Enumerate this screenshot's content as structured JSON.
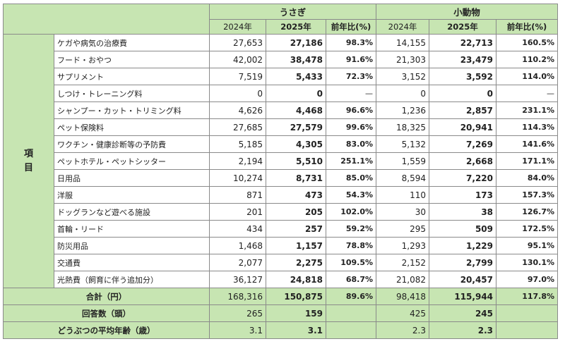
{
  "header": {
    "group1": "うさぎ",
    "group2": "小動物",
    "col_2024": "2024年",
    "col_2025": "2025年",
    "col_ratio": "前年比(%)"
  },
  "side_label": [
    "項",
    "目"
  ],
  "rows": [
    {
      "label": "ケガや病気の治療費",
      "r24": "27,653",
      "r25": "27,186",
      "rr": "98.3%",
      "s24": "14,155",
      "s25": "22,713",
      "sr": "160.5%"
    },
    {
      "label": "フード・おやつ",
      "r24": "42,002",
      "r25": "38,478",
      "rr": "91.6%",
      "s24": "21,303",
      "s25": "23,479",
      "sr": "110.2%"
    },
    {
      "label": "サプリメント",
      "r24": "7,519",
      "r25": "5,433",
      "rr": "72.3%",
      "s24": "3,152",
      "s25": "3,592",
      "sr": "114.0%"
    },
    {
      "label": "しつけ・トレーニング料",
      "r24": "0",
      "r25": "0",
      "rr": "—",
      "s24": "0",
      "s25": "0",
      "sr": "—"
    },
    {
      "label": "シャンプー・カット・トリミング料",
      "r24": "4,626",
      "r25": "4,468",
      "rr": "96.6%",
      "s24": "1,236",
      "s25": "2,857",
      "sr": "231.1%"
    },
    {
      "label": "ペット保険料",
      "r24": "27,685",
      "r25": "27,579",
      "rr": "99.6%",
      "s24": "18,325",
      "s25": "20,941",
      "sr": "114.3%"
    },
    {
      "label": "ワクチン・健康診断等の予防費",
      "r24": "5,185",
      "r25": "4,305",
      "rr": "83.0%",
      "s24": "5,132",
      "s25": "7,269",
      "sr": "141.6%"
    },
    {
      "label": "ペットホテル・ペットシッター",
      "r24": "2,194",
      "r25": "5,510",
      "rr": "251.1%",
      "s24": "1,559",
      "s25": "2,668",
      "sr": "171.1%"
    },
    {
      "label": "日用品",
      "r24": "10,274",
      "r25": "8,731",
      "rr": "85.0%",
      "s24": "8,594",
      "s25": "7,220",
      "sr": "84.0%"
    },
    {
      "label": "洋服",
      "r24": "871",
      "r25": "473",
      "rr": "54.3%",
      "s24": "110",
      "s25": "173",
      "sr": "157.3%"
    },
    {
      "label": "ドッグランなど遊べる施設",
      "r24": "201",
      "r25": "205",
      "rr": "102.0%",
      "s24": "30",
      "s25": "38",
      "sr": "126.7%"
    },
    {
      "label": "首輪・リード",
      "r24": "434",
      "r25": "257",
      "rr": "59.2%",
      "s24": "295",
      "s25": "509",
      "sr": "172.5%"
    },
    {
      "label": "防災用品",
      "r24": "1,468",
      "r25": "1,157",
      "rr": "78.8%",
      "s24": "1,293",
      "s25": "1,229",
      "sr": "95.1%"
    },
    {
      "label": "交通費",
      "r24": "2,077",
      "r25": "2,275",
      "rr": "109.5%",
      "s24": "2,152",
      "s25": "2,799",
      "sr": "130.1%"
    },
    {
      "label": "光熱費（飼育に伴う追加分）",
      "r24": "36,127",
      "r25": "24,818",
      "rr": "68.7%",
      "s24": "21,082",
      "s25": "20,457",
      "sr": "97.0%"
    }
  ],
  "footer": [
    {
      "label": "合計（円）",
      "r24": "168,316",
      "r25": "150,875",
      "rr": "89.6%",
      "s24": "98,418",
      "s25": "115,944",
      "sr": "117.8%"
    },
    {
      "label": "回答数（頭）",
      "r24": "265",
      "r25": "159",
      "rr": "",
      "s24": "425",
      "s25": "245",
      "sr": ""
    },
    {
      "label": "どうぶつの平均年齢（歳）",
      "r24": "3.1",
      "r25": "3.1",
      "rr": "",
      "s24": "2.3",
      "s25": "2.3",
      "sr": ""
    }
  ]
}
